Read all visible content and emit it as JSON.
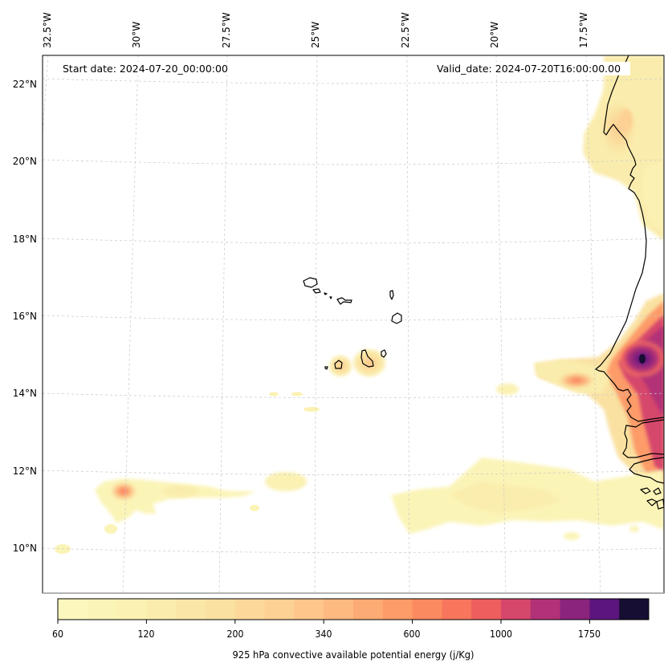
{
  "map": {
    "start_date": "Start date: 2024-07-20_00:00:00",
    "valid_date": "Valid_date: 2024-07-20T16:00:00.00",
    "lon_labels": [
      "32.5°W",
      "30°W",
      "27.5°W",
      "25°W",
      "22.5°W",
      "20°W",
      "17.5°W"
    ],
    "lat_labels": [
      "22°N",
      "20°N",
      "18°N",
      "16°N",
      "14°N",
      "12°N",
      "10°N"
    ],
    "gridline_color": "#c8c8c8",
    "coastline_color": "#000000"
  },
  "colorbar": {
    "title": "925 hPa convective available potential energy (j/Kg)",
    "tick_labels": [
      "60",
      "120",
      "200",
      "340",
      "600",
      "1000",
      "1750"
    ],
    "colors": [
      "#fcf8bd",
      "#fbf4b7",
      "#fbf1b2",
      "#faecac",
      "#fae7a7",
      "#fae1a1",
      "#fcd99a",
      "#fdd093",
      "#fec68a",
      "#feb980",
      "#fdab74",
      "#fd9b69",
      "#fc8a60",
      "#f8765c",
      "#ee5e5e",
      "#d6476c",
      "#b23277",
      "#8a247c",
      "#5d157e",
      "#170e34"
    ],
    "scale_note": "levels 60 → 1750+"
  }
}
